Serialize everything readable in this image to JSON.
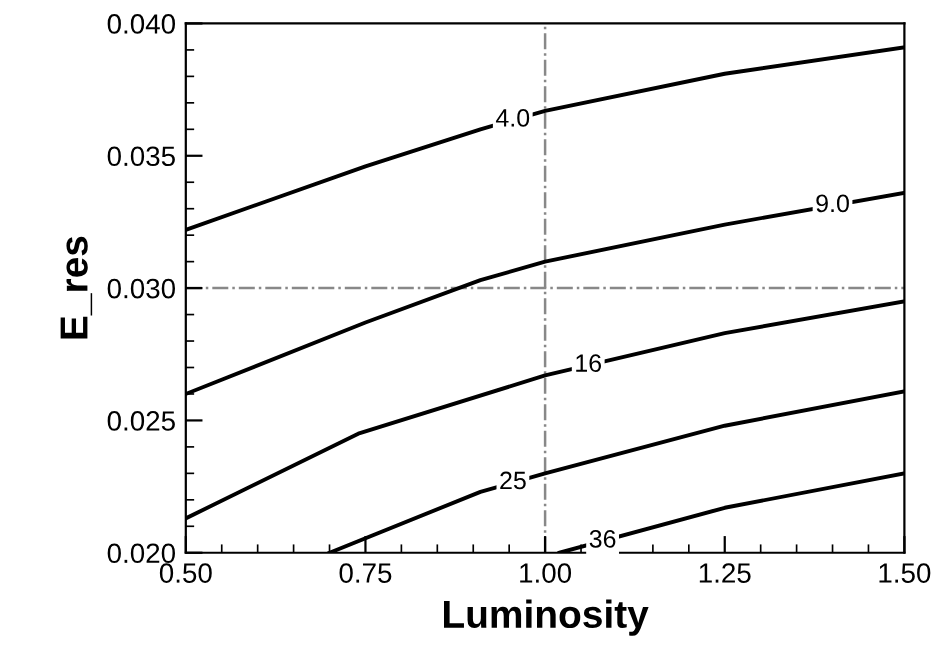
{
  "chart_data": {
    "type": "line",
    "xlabel": "Luminosity",
    "ylabel": "E_res",
    "xlim": [
      0.5,
      1.5
    ],
    "xticks": [
      {
        "value": 0.5,
        "label": "0.50"
      },
      {
        "value": 0.75,
        "label": "0.75"
      },
      {
        "value": 1.0,
        "label": "1.00"
      },
      {
        "value": 1.25,
        "label": "1.25"
      },
      {
        "value": 1.5,
        "label": "1.50"
      }
    ],
    "ylim": [
      0.02,
      0.04
    ],
    "yticks": [
      {
        "value": 0.02,
        "label": "0.020"
      },
      {
        "value": 0.025,
        "label": "0.025"
      },
      {
        "value": 0.03,
        "label": "0.030"
      },
      {
        "value": 0.035,
        "label": "0.035"
      },
      {
        "value": 0.04,
        "label": "0.040"
      }
    ],
    "grid": false,
    "legend": false,
    "marker": "none",
    "line_style": "solid",
    "series": [
      {
        "name": "4.0",
        "color": "#000000",
        "x": [
          0.5,
          0.75,
          0.91,
          1.0,
          1.25,
          1.5
        ],
        "values": [
          0.0322,
          0.0346,
          0.036,
          0.0367,
          0.0381,
          0.0391
        ]
      },
      {
        "name": "9.0",
        "color": "#000000",
        "x": [
          0.5,
          0.75,
          0.91,
          1.0,
          1.25,
          1.5
        ],
        "values": [
          0.026,
          0.0287,
          0.0303,
          0.031,
          0.0324,
          0.0336
        ]
      },
      {
        "name": "16",
        "color": "#000000",
        "x": [
          0.5,
          0.74,
          1.0,
          1.25,
          1.5
        ],
        "values": [
          0.0213,
          0.0245,
          0.0267,
          0.0283,
          0.0295
        ]
      },
      {
        "name": "25",
        "color": "#000000",
        "x": [
          0.7,
          0.91,
          1.0,
          1.25,
          1.5
        ],
        "values": [
          0.02,
          0.0223,
          0.023,
          0.0248,
          0.0261
        ]
      },
      {
        "name": "36",
        "color": "#000000",
        "x": [
          1.02,
          1.25,
          1.5
        ],
        "values": [
          0.02,
          0.0217,
          0.023
        ]
      }
    ],
    "ref_lines": [
      {
        "axis": "x",
        "value": 1.0,
        "color": "#888888",
        "line_style": "dashdot"
      },
      {
        "axis": "y",
        "value": 0.03,
        "color": "#888888",
        "line_style": "dashdot"
      }
    ]
  }
}
